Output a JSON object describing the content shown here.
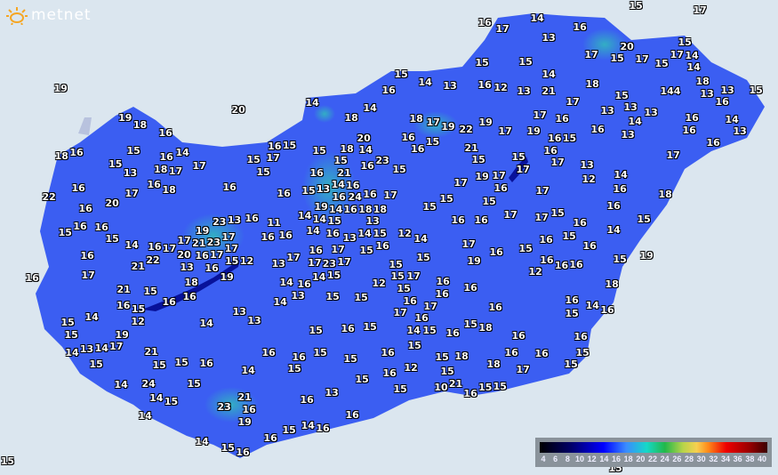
{
  "brand": {
    "logo": "metnet",
    "logo_icon": "sun-icon",
    "accent": "#f5a623"
  },
  "map": {
    "land_color": "#3b5ef2",
    "background_color": "#dbe6ef",
    "lake_color": "#08129a",
    "labels": [
      "15",
      "17",
      "19",
      "20",
      "15",
      "15",
      "19",
      "16",
      "14",
      "17",
      "13",
      "16",
      "20",
      "15",
      "17",
      "15",
      "17",
      "15",
      "17",
      "14",
      "14",
      "15",
      "15",
      "14",
      "15",
      "14",
      "13",
      "16",
      "12",
      "13",
      "21",
      "18",
      "16",
      "18",
      "13",
      "15",
      "15",
      "144",
      "13",
      "13",
      "14",
      "14",
      "13",
      "13",
      "16",
      "17",
      "17",
      "16",
      "18",
      "17",
      "19",
      "22",
      "19",
      "17",
      "19",
      "19",
      "18",
      "16",
      "18",
      "16",
      "14",
      "13",
      "14",
      "16",
      "16",
      "13",
      "16",
      "15",
      "16",
      "15",
      "16",
      "20",
      "16",
      "15",
      "14",
      "16",
      "16",
      "15",
      "15",
      "18",
      "14",
      "23",
      "15",
      "21",
      "15",
      "15",
      "17",
      "16",
      "17",
      "18",
      "16",
      "15",
      "13",
      "18",
      "17",
      "17",
      "15",
      "17",
      "15",
      "15",
      "21",
      "16",
      "16",
      "17",
      "13",
      "14",
      "12",
      "16",
      "17",
      "19",
      "17",
      "17",
      "16",
      "16",
      "17",
      "16",
      "18",
      "16",
      "16",
      "15",
      "13",
      "14",
      "16",
      "24",
      "16",
      "17",
      "16",
      "22",
      "20",
      "16",
      "18",
      "16",
      "14",
      "16",
      "19",
      "18",
      "18",
      "15",
      "15",
      "15",
      "16",
      "16",
      "17",
      "17",
      "15",
      "16",
      "15",
      "23",
      "13",
      "16",
      "11",
      "14",
      "14",
      "15",
      "13",
      "15",
      "15",
      "16",
      "16",
      "15",
      "16",
      "16",
      "14",
      "16",
      "13",
      "14",
      "16",
      "12",
      "14",
      "17",
      "16",
      "15",
      "16",
      "15",
      "16",
      "14",
      "14",
      "16",
      "17",
      "17",
      "21",
      "23",
      "17",
      "17",
      "16",
      "17",
      "19",
      "16",
      "22",
      "20",
      "16",
      "17",
      "15",
      "12",
      "13",
      "17",
      "17",
      "23",
      "17",
      "15",
      "15",
      "19",
      "16",
      "16",
      "16",
      "15",
      "21",
      "13",
      "16",
      "15",
      "15",
      "12",
      "16",
      "17",
      "19",
      "18",
      "14",
      "15",
      "17",
      "14",
      "16",
      "12",
      "15",
      "16",
      "21",
      "15",
      "16",
      "13",
      "15",
      "15",
      "16",
      "16",
      "16",
      "18",
      "16",
      "16",
      "15",
      "14",
      "17",
      "17",
      "16",
      "16",
      "16",
      "14",
      "16",
      "15",
      "14",
      "12",
      "14",
      "13",
      "13",
      "15",
      "15",
      "15",
      "16",
      "15",
      "14",
      "15",
      "16",
      "15",
      "18",
      "16",
      "16",
      "19",
      "13",
      "14",
      "17",
      "21",
      "16",
      "15",
      "15",
      "14",
      "15",
      "15",
      "15",
      "16",
      "14",
      "16",
      "15",
      "15",
      "16",
      "15",
      "18",
      "18",
      "16",
      "16",
      "17",
      "15",
      "15",
      "16",
      "12",
      "15",
      "14",
      "24",
      "15",
      "14",
      "15",
      "13",
      "15",
      "15",
      "10",
      "21",
      "16",
      "15",
      "15",
      "21",
      "23",
      "16",
      "16",
      "14",
      "19",
      "16",
      "15",
      "14",
      "16",
      "14",
      "15",
      "16",
      "16"
    ]
  },
  "legend": {
    "ticks": [
      "4",
      "6",
      "8",
      "10",
      "12",
      "14",
      "16",
      "18",
      "20",
      "22",
      "24",
      "26",
      "28",
      "30",
      "32",
      "34",
      "36",
      "38",
      "40"
    ]
  }
}
